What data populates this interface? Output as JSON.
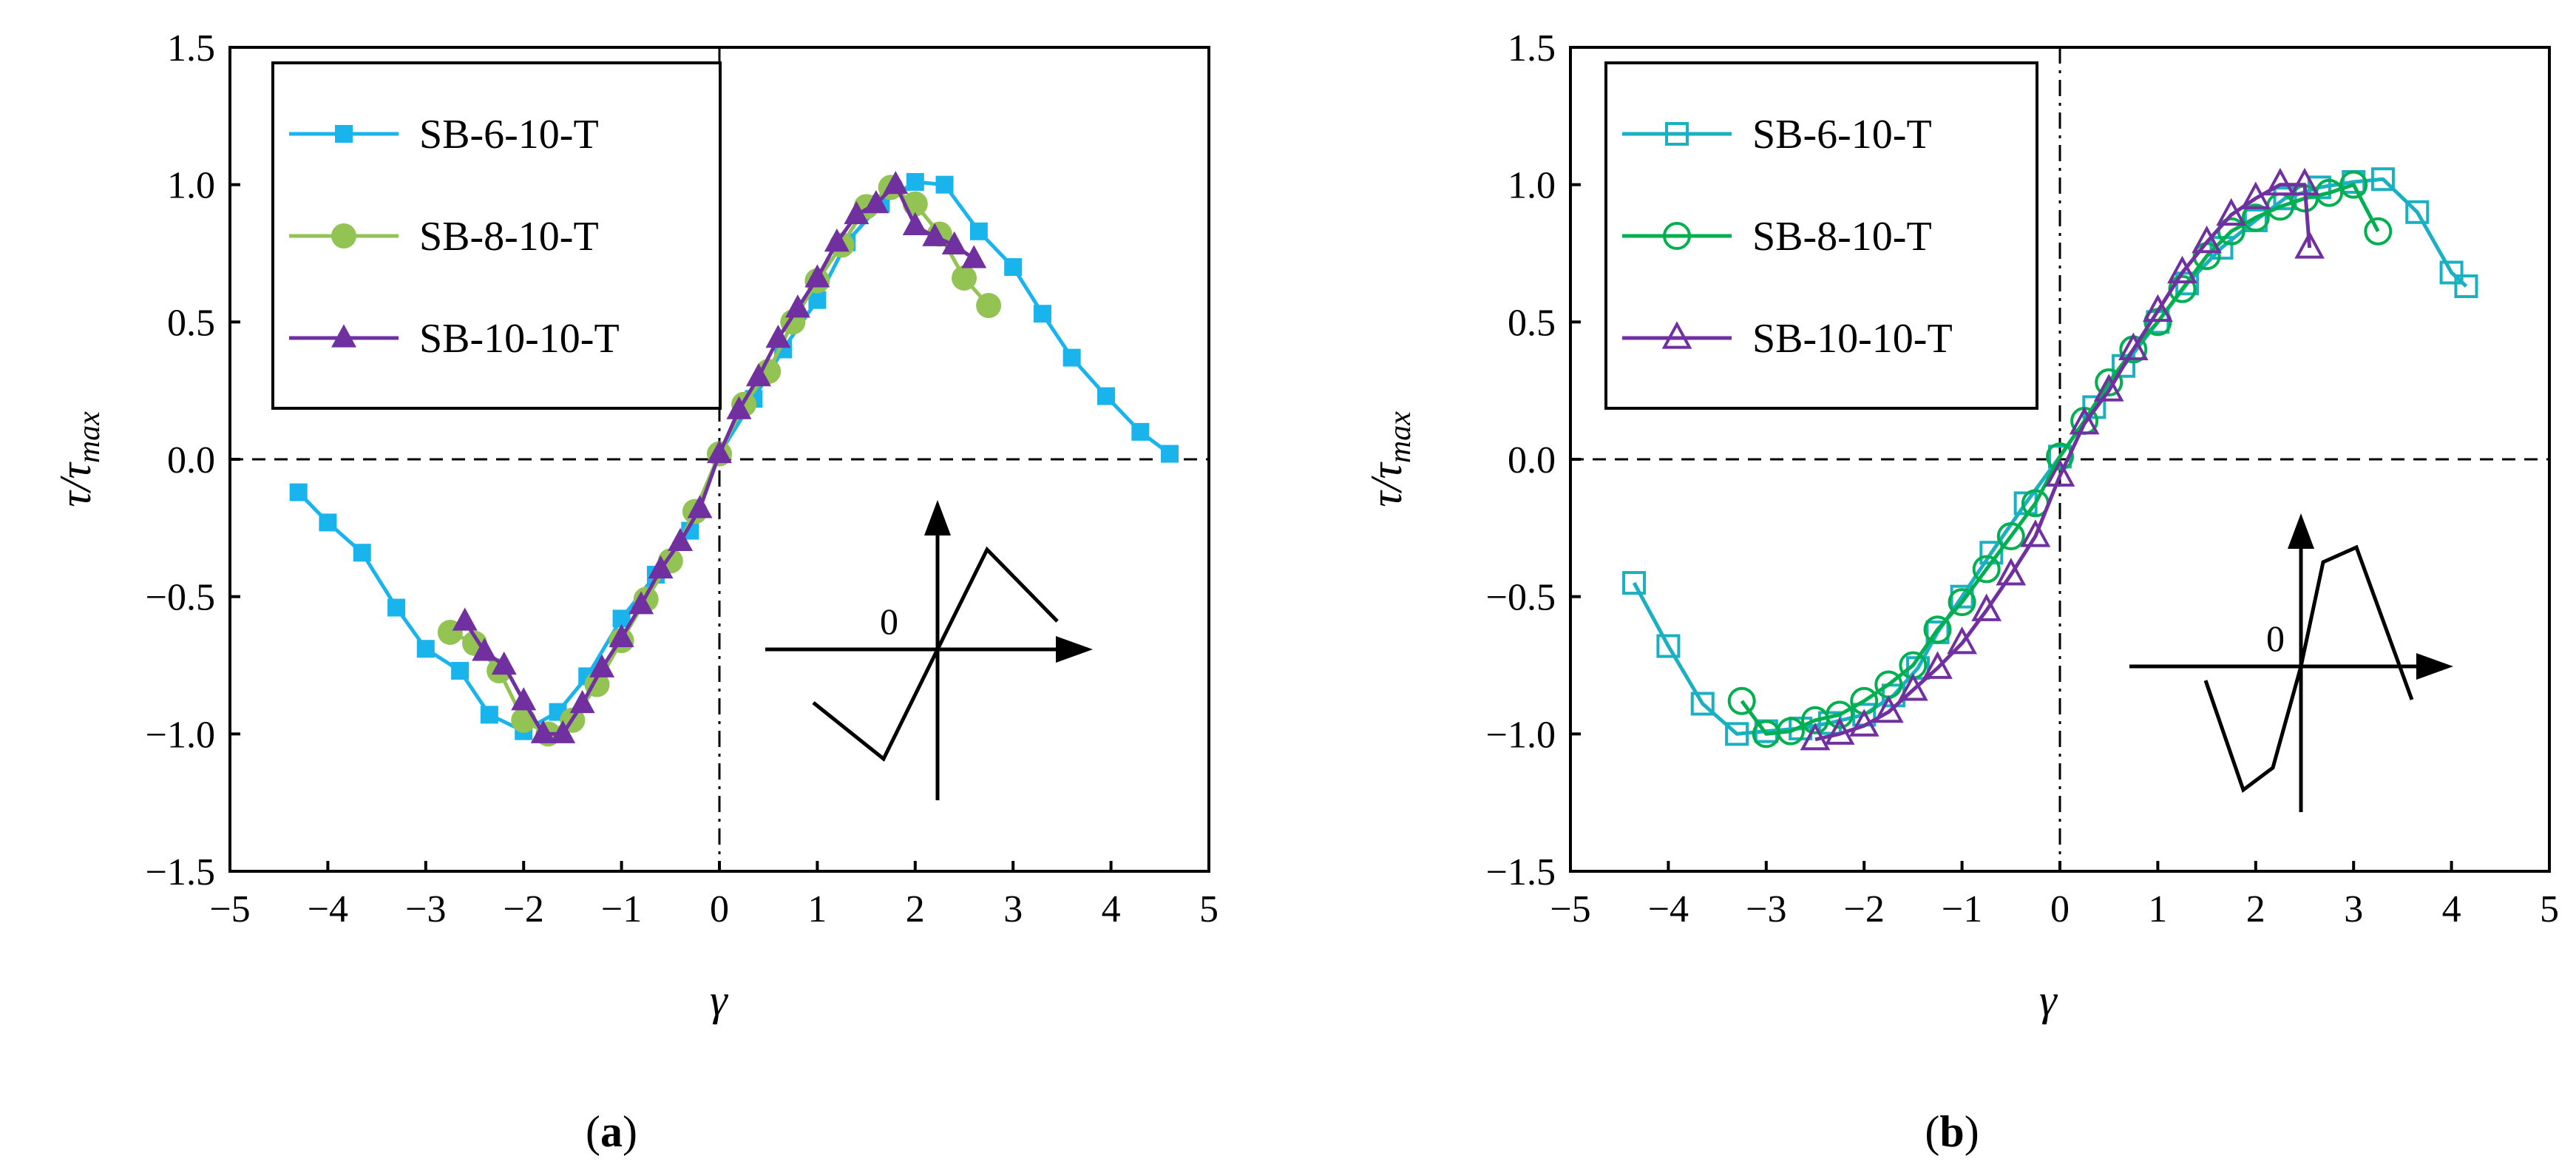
{
  "chart_data": [
    {
      "type": "line",
      "panel": "a",
      "panel_label": "a",
      "xlabel": "γ",
      "ylabel": "τ/τmax",
      "xlim": [
        -5,
        5
      ],
      "ylim": [
        -1.5,
        1.5
      ],
      "x_ticks": [
        "−5",
        "−4",
        "−3",
        "−2",
        "−1",
        "0",
        "1",
        "2",
        "3",
        "4",
        "5"
      ],
      "y_ticks": [
        "1.5",
        "1.0",
        "0.5",
        "0.0",
        "−0.5",
        "−1.0",
        "−1.5"
      ],
      "legend_position": "top-left",
      "inset_label": "0",
      "series": [
        {
          "name": "SB-6-10-T",
          "color": "#1ab4ec",
          "marker": "square-filled",
          "points": [
            [
              -4.3,
              -0.12
            ],
            [
              -4.0,
              -0.23
            ],
            [
              -3.65,
              -0.34
            ],
            [
              -3.3,
              -0.54
            ],
            [
              -3.0,
              -0.69
            ],
            [
              -2.65,
              -0.77
            ],
            [
              -2.35,
              -0.93
            ],
            [
              -2.0,
              -0.99
            ],
            [
              -1.65,
              -0.92
            ],
            [
              -1.35,
              -0.79
            ],
            [
              -1.0,
              -0.58
            ],
            [
              -0.65,
              -0.42
            ],
            [
              -0.3,
              -0.26
            ],
            [
              0.0,
              0.02
            ],
            [
              0.35,
              0.22
            ],
            [
              0.65,
              0.4
            ],
            [
              1.0,
              0.58
            ],
            [
              1.3,
              0.79
            ],
            [
              1.65,
              0.93
            ],
            [
              2.0,
              1.01
            ],
            [
              2.3,
              1.0
            ],
            [
              2.65,
              0.83
            ],
            [
              3.0,
              0.7
            ],
            [
              3.3,
              0.53
            ],
            [
              3.6,
              0.37
            ],
            [
              3.95,
              0.23
            ],
            [
              4.3,
              0.1
            ],
            [
              4.6,
              0.02
            ]
          ]
        },
        {
          "name": "SB-8-10-T",
          "color": "#92c353",
          "marker": "circle-filled",
          "points": [
            [
              -2.75,
              -0.63
            ],
            [
              -2.5,
              -0.67
            ],
            [
              -2.25,
              -0.77
            ],
            [
              -2.0,
              -0.95
            ],
            [
              -1.75,
              -1.0
            ],
            [
              -1.5,
              -0.95
            ],
            [
              -1.25,
              -0.82
            ],
            [
              -1.0,
              -0.66
            ],
            [
              -0.75,
              -0.51
            ],
            [
              -0.5,
              -0.37
            ],
            [
              -0.25,
              -0.19
            ],
            [
              0.0,
              0.02
            ],
            [
              0.25,
              0.2
            ],
            [
              0.5,
              0.32
            ],
            [
              0.75,
              0.5
            ],
            [
              1.0,
              0.65
            ],
            [
              1.25,
              0.78
            ],
            [
              1.5,
              0.92
            ],
            [
              1.75,
              0.99
            ],
            [
              2.0,
              0.93
            ],
            [
              2.25,
              0.82
            ],
            [
              2.5,
              0.66
            ],
            [
              2.75,
              0.56
            ]
          ]
        },
        {
          "name": "SB-10-10-T",
          "color": "#7030a0",
          "marker": "triangle-filled",
          "points": [
            [
              -2.6,
              -0.59
            ],
            [
              -2.4,
              -0.7
            ],
            [
              -2.2,
              -0.75
            ],
            [
              -2.0,
              -0.88
            ],
            [
              -1.8,
              -1.0
            ],
            [
              -1.6,
              -1.0
            ],
            [
              -1.4,
              -0.89
            ],
            [
              -1.2,
              -0.76
            ],
            [
              -1.0,
              -0.65
            ],
            [
              -0.8,
              -0.53
            ],
            [
              -0.6,
              -0.4
            ],
            [
              -0.4,
              -0.3
            ],
            [
              -0.2,
              -0.18
            ],
            [
              0.0,
              0.02
            ],
            [
              0.2,
              0.18
            ],
            [
              0.4,
              0.3
            ],
            [
              0.6,
              0.44
            ],
            [
              0.8,
              0.55
            ],
            [
              1.0,
              0.66
            ],
            [
              1.2,
              0.79
            ],
            [
              1.4,
              0.89
            ],
            [
              1.6,
              0.93
            ],
            [
              1.8,
              1.0
            ],
            [
              2.0,
              0.85
            ],
            [
              2.2,
              0.81
            ],
            [
              2.4,
              0.78
            ],
            [
              2.6,
              0.73
            ]
          ]
        }
      ]
    },
    {
      "type": "line",
      "panel": "b",
      "panel_label": "b",
      "xlabel": "γ",
      "ylabel": "τ/τmax",
      "xlim": [
        -5,
        5
      ],
      "ylim": [
        -1.5,
        1.5
      ],
      "x_ticks": [
        "−5",
        "−4",
        "−3",
        "−2",
        "−1",
        "0",
        "1",
        "2",
        "3",
        "4",
        "5"
      ],
      "y_ticks": [
        "1.5",
        "1.0",
        "0.5",
        "0.0",
        "−0.5",
        "−1.0",
        "−1.5"
      ],
      "legend_position": "top-left",
      "inset_label": "0",
      "series": [
        {
          "name": "SB-6-10-T",
          "color": "#1ab0c2",
          "marker": "square-open",
          "points": [
            [
              -4.35,
              -0.45
            ],
            [
              -4.0,
              -0.68
            ],
            [
              -3.65,
              -0.89
            ],
            [
              -3.3,
              -1.0
            ],
            [
              -3.0,
              -0.99
            ],
            [
              -2.65,
              -0.98
            ],
            [
              -2.35,
              -0.96
            ],
            [
              -2.0,
              -0.93
            ],
            [
              -1.7,
              -0.86
            ],
            [
              -1.45,
              -0.76
            ],
            [
              -1.25,
              -0.63
            ],
            [
              -1.0,
              -0.5
            ],
            [
              -0.7,
              -0.34
            ],
            [
              -0.35,
              -0.16
            ],
            [
              0.0,
              0.01
            ],
            [
              0.35,
              0.19
            ],
            [
              0.65,
              0.34
            ],
            [
              1.0,
              0.5
            ],
            [
              1.3,
              0.64
            ],
            [
              1.65,
              0.77
            ],
            [
              2.0,
              0.87
            ],
            [
              2.3,
              0.95
            ],
            [
              2.65,
              0.99
            ],
            [
              3.0,
              1.01
            ],
            [
              3.3,
              1.02
            ],
            [
              3.65,
              0.9
            ],
            [
              4.0,
              0.68
            ],
            [
              4.15,
              0.63
            ]
          ]
        },
        {
          "name": "SB-8-10-T",
          "color": "#00b050",
          "marker": "circle-open",
          "points": [
            [
              -3.25,
              -0.88
            ],
            [
              -3.0,
              -1.0
            ],
            [
              -2.75,
              -0.99
            ],
            [
              -2.5,
              -0.95
            ],
            [
              -2.25,
              -0.93
            ],
            [
              -2.0,
              -0.88
            ],
            [
              -1.75,
              -0.82
            ],
            [
              -1.5,
              -0.75
            ],
            [
              -1.25,
              -0.62
            ],
            [
              -1.0,
              -0.52
            ],
            [
              -0.75,
              -0.4
            ],
            [
              -0.5,
              -0.28
            ],
            [
              -0.25,
              -0.16
            ],
            [
              0.0,
              0.01
            ],
            [
              0.25,
              0.14
            ],
            [
              0.5,
              0.28
            ],
            [
              0.75,
              0.4
            ],
            [
              1.0,
              0.5
            ],
            [
              1.25,
              0.62
            ],
            [
              1.5,
              0.74
            ],
            [
              1.75,
              0.83
            ],
            [
              2.0,
              0.88
            ],
            [
              2.25,
              0.92
            ],
            [
              2.5,
              0.95
            ],
            [
              2.75,
              0.97
            ],
            [
              3.0,
              1.0
            ],
            [
              3.25,
              0.83
            ]
          ]
        },
        {
          "name": "SB-10-10-T",
          "color": "#7030a0",
          "marker": "triangle-open",
          "points": [
            [
              -2.5,
              -1.02
            ],
            [
              -2.25,
              -1.0
            ],
            [
              -2.0,
              -0.97
            ],
            [
              -1.75,
              -0.92
            ],
            [
              -1.5,
              -0.84
            ],
            [
              -1.25,
              -0.76
            ],
            [
              -1.0,
              -0.67
            ],
            [
              -0.75,
              -0.55
            ],
            [
              -0.5,
              -0.42
            ],
            [
              -0.25,
              -0.28
            ],
            [
              0.0,
              -0.06
            ],
            [
              0.25,
              0.13
            ],
            [
              0.5,
              0.25
            ],
            [
              0.75,
              0.4
            ],
            [
              1.0,
              0.54
            ],
            [
              1.25,
              0.68
            ],
            [
              1.5,
              0.79
            ],
            [
              1.75,
              0.89
            ],
            [
              2.0,
              0.95
            ],
            [
              2.25,
              1.0
            ],
            [
              2.5,
              1.0
            ],
            [
              2.55,
              0.77
            ]
          ]
        }
      ]
    }
  ]
}
